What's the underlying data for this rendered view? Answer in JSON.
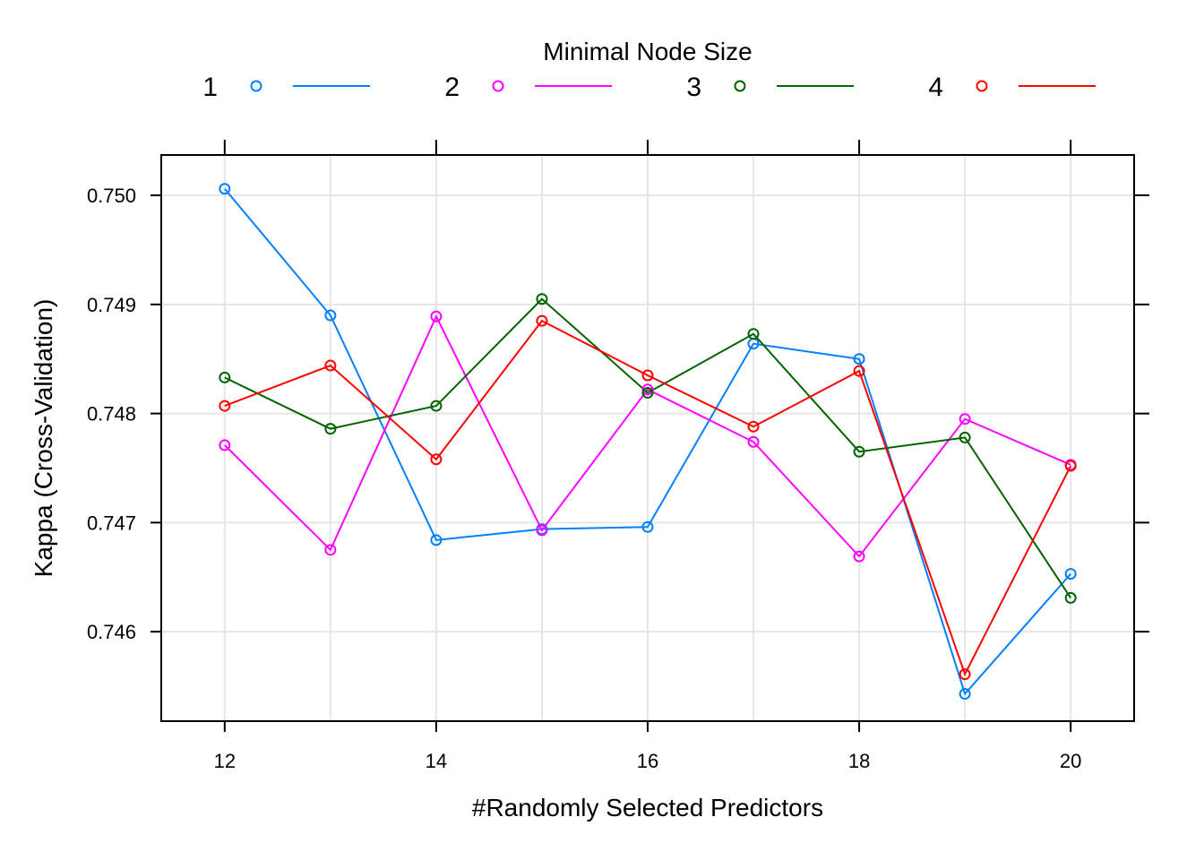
{
  "chart_data": {
    "type": "line",
    "legend_title": "Minimal Node Size",
    "legend_position": "top",
    "xlabel": "#Randomly Selected Predictors",
    "ylabel": "Kappa (Cross-Validation)",
    "x": [
      12,
      13,
      14,
      15,
      16,
      17,
      18,
      19,
      20
    ],
    "x_ticks": [
      "12",
      "14",
      "16",
      "18",
      "20"
    ],
    "y_ticks": [
      "0.746",
      "0.747",
      "0.748",
      "0.749",
      "0.750"
    ],
    "xlim": [
      11.4,
      20.6
    ],
    "ylim": [
      0.74518,
      0.75037
    ],
    "grid": true,
    "series": [
      {
        "name": "1",
        "color": "#0080ff",
        "values": [
          0.75006,
          0.7489,
          0.74684,
          0.74694,
          0.74696,
          0.74864,
          0.7485,
          0.74543,
          0.74653
        ]
      },
      {
        "name": "2",
        "color": "#ff00ff",
        "values": [
          0.74771,
          0.74675,
          0.74889,
          0.74693,
          0.74822,
          0.74774,
          0.74669,
          0.74795,
          0.74753
        ]
      },
      {
        "name": "3",
        "color": "#006400",
        "values": [
          0.74833,
          0.74786,
          0.74807,
          0.74905,
          0.74819,
          0.74873,
          0.74765,
          0.74778,
          0.74631
        ]
      },
      {
        "name": "4",
        "color": "#ff0000",
        "values": [
          0.74807,
          0.74844,
          0.74758,
          0.74885,
          0.74835,
          0.74788,
          0.74839,
          0.74561,
          0.74752
        ]
      }
    ]
  }
}
